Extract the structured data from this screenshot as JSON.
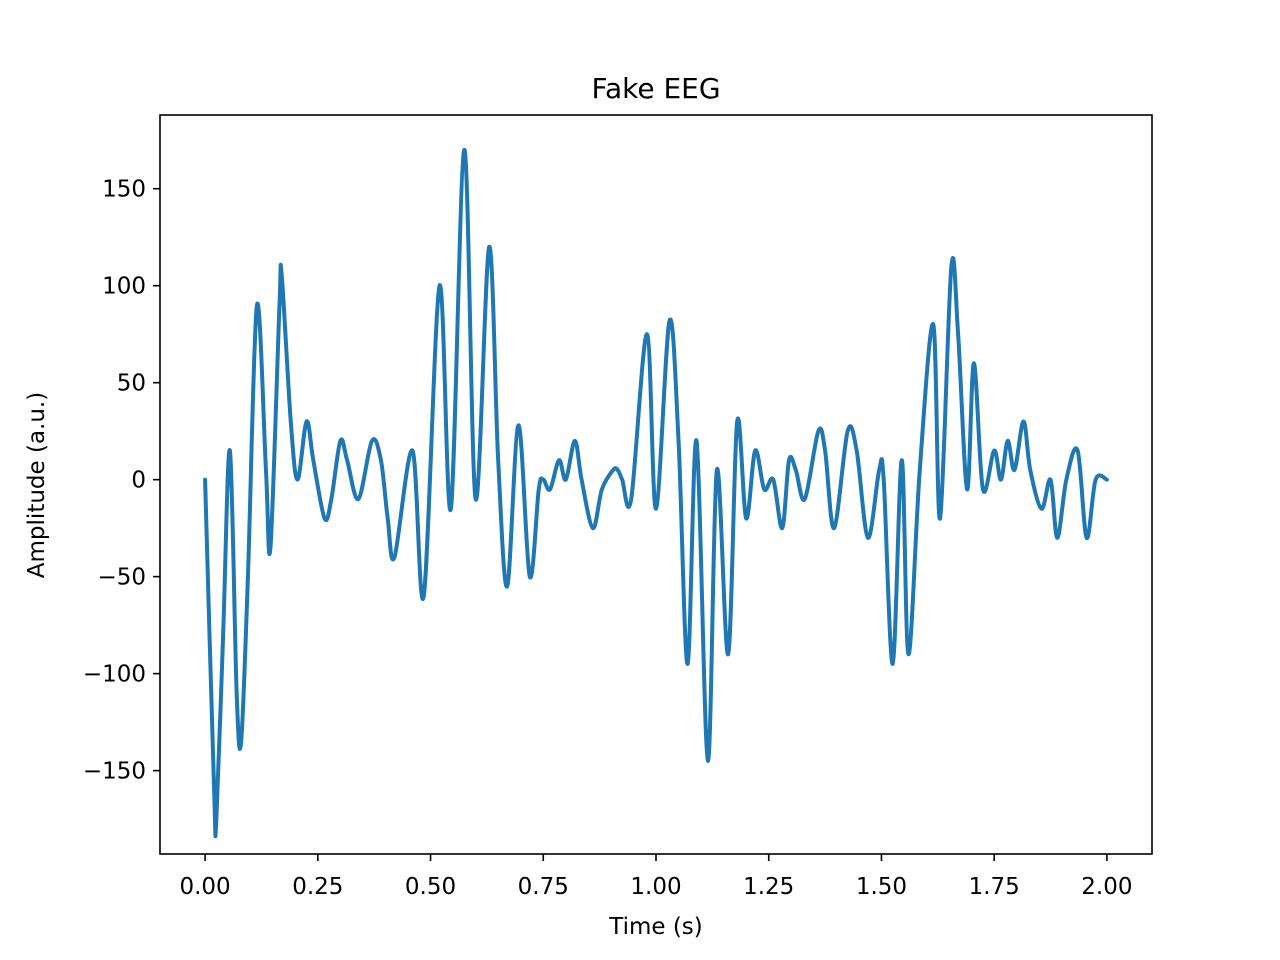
{
  "chart_data": {
    "type": "line",
    "title": "Fake EEG",
    "xlabel": "Time (s)",
    "ylabel": "Amplitude (a.u.)",
    "xlim": [
      -0.1,
      2.1
    ],
    "ylim": [
      -193,
      188
    ],
    "grid": false,
    "legend": "none",
    "x_ticks": [
      0.0,
      0.25,
      0.5,
      0.75,
      1.0,
      1.25,
      1.5,
      1.75,
      2.0
    ],
    "x_tick_labels": [
      "0.00",
      "0.25",
      "0.50",
      "0.75",
      "1.00",
      "1.25",
      "1.50",
      "1.75",
      "2.00"
    ],
    "y_ticks": [
      -150,
      -100,
      -50,
      0,
      50,
      100,
      150
    ],
    "y_tick_labels": [
      "−150",
      "−100",
      "−50",
      "0",
      "50",
      "100",
      "150"
    ],
    "series": [
      {
        "name": "Fake EEG",
        "color": "#1f77b4",
        "x": [
          0.0,
          0.02,
          0.025,
          0.04,
          0.055,
          0.07,
          0.08,
          0.095,
          0.115,
          0.135,
          0.145,
          0.165,
          0.17,
          0.19,
          0.205,
          0.225,
          0.24,
          0.265,
          0.28,
          0.3,
          0.315,
          0.34,
          0.37,
          0.39,
          0.405,
          0.42,
          0.46,
          0.485,
          0.52,
          0.545,
          0.575,
          0.6,
          0.63,
          0.65,
          0.67,
          0.695,
          0.72,
          0.74,
          0.75,
          0.765,
          0.785,
          0.8,
          0.82,
          0.835,
          0.86,
          0.88,
          0.905,
          0.915,
          0.925,
          0.945,
          0.98,
          1.0,
          1.03,
          1.05,
          1.07,
          1.09,
          1.115,
          1.135,
          1.16,
          1.18,
          1.2,
          1.22,
          1.24,
          1.26,
          1.28,
          1.295,
          1.31,
          1.33,
          1.36,
          1.375,
          1.395,
          1.425,
          1.445,
          1.47,
          1.495,
          1.505,
          1.525,
          1.545,
          1.56,
          1.585,
          1.615,
          1.63,
          1.655,
          1.67,
          1.69,
          1.705,
          1.725,
          1.75,
          1.765,
          1.78,
          1.795,
          1.815,
          1.83,
          1.855,
          1.875,
          1.89,
          1.91,
          1.935,
          1.955,
          1.975,
          2.0
        ],
        "values": [
          0,
          -160,
          -175,
          -80,
          15,
          -110,
          -135,
          -50,
          90,
          5,
          -35,
          90,
          105,
          30,
          0,
          30,
          10,
          -20,
          -10,
          20,
          10,
          -10,
          20,
          10,
          -20,
          -40,
          15,
          -60,
          100,
          -15,
          170,
          -10,
          120,
          10,
          -55,
          28,
          -50,
          -5,
          0,
          -5,
          10,
          0,
          20,
          0,
          -25,
          -5,
          5,
          5,
          0,
          -10,
          75,
          -15,
          82,
          20,
          -95,
          20,
          -145,
          5,
          -90,
          30,
          -20,
          15,
          -5,
          0,
          -25,
          10,
          5,
          -10,
          25,
          15,
          -25,
          25,
          15,
          -30,
          5,
          0,
          -95,
          10,
          -90,
          5,
          80,
          -20,
          110,
          75,
          -5,
          60,
          -5,
          15,
          0,
          20,
          5,
          30,
          5,
          -15,
          0,
          -30,
          0,
          15,
          -30,
          0,
          0
        ]
      }
    ]
  }
}
